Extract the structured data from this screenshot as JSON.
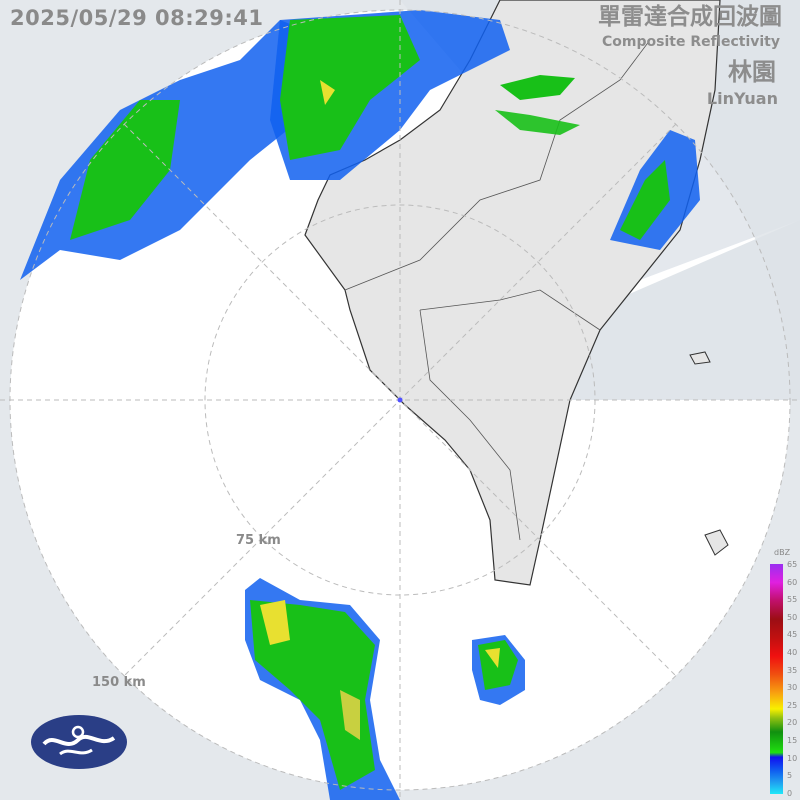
{
  "header": {
    "timestamp": "2025/05/29 08:29:41",
    "title_zh": "單雷達合成回波圖",
    "title_en": "Composite Reflectivity",
    "site_zh": "林園",
    "site_en": "LinYuan"
  },
  "range_rings": [
    {
      "label": "75 km"
    },
    {
      "label": "150 km"
    }
  ],
  "legend": {
    "unit": "dBZ",
    "ticks": [
      "65",
      "60",
      "55",
      "50",
      "45",
      "40",
      "35",
      "30",
      "25",
      "20",
      "15",
      "10",
      "5",
      "0"
    ]
  },
  "colors": {
    "background": "#e4e8ec",
    "radar_area": "#ffffff",
    "land": "#e6e6e6",
    "echo_green": "#18c018",
    "echo_blue": "#1060f0",
    "echo_yellow": "#e8e030",
    "logo": "#2a3e86"
  },
  "logo": {
    "icon": "cwa-logo"
  }
}
